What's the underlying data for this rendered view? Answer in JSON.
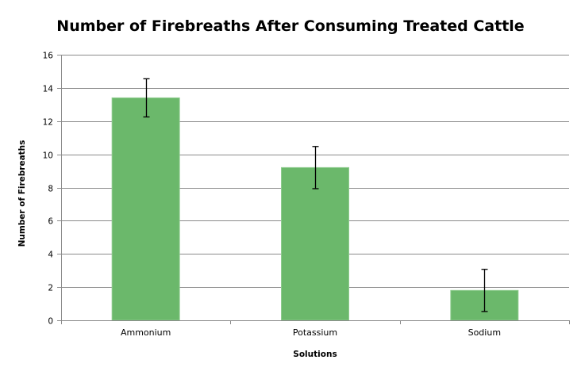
{
  "chart_data": {
    "type": "bar",
    "title": "Number of Firebreaths After Consuming Treated Cattle",
    "xlabel": "Solutions",
    "ylabel": "Number of Firebreaths",
    "categories": [
      "Ammonium",
      "Potassium",
      "Sodium"
    ],
    "values": [
      13.4,
      9.2,
      1.8
    ],
    "error_bars": [
      {
        "lower": 12.25,
        "upper": 14.55
      },
      {
        "lower": 7.93,
        "upper": 10.47
      },
      {
        "lower": 0.53,
        "upper": 3.07
      }
    ],
    "ylim": [
      0,
      16
    ],
    "yticks": [
      0,
      2,
      4,
      6,
      8,
      10,
      12,
      14,
      16
    ],
    "ytick_labels": [
      "0",
      "2",
      "4",
      "6",
      "8",
      "10",
      "12",
      "14",
      "16"
    ],
    "grid": true,
    "legend": "none",
    "colors": {
      "bar": "#6bb86b",
      "bar_edge": "#8fcc8f",
      "grid": "#8a8a8a",
      "error_bar": "#000000"
    }
  }
}
